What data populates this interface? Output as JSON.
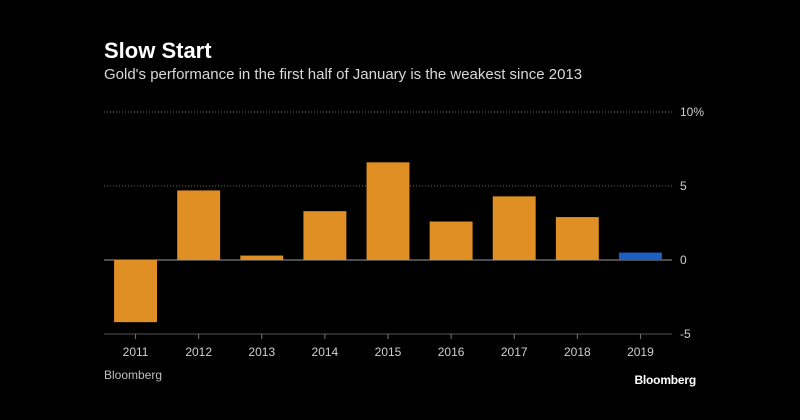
{
  "header": {
    "title": "Slow Start",
    "subtitle": "Gold's performance in the first half of January is the weakest since 2013"
  },
  "chart_data": {
    "type": "bar",
    "categories": [
      "2011",
      "2012",
      "2013",
      "2014",
      "2015",
      "2016",
      "2017",
      "2018",
      "2019"
    ],
    "values": [
      -4.2,
      4.7,
      0.3,
      3.3,
      6.6,
      2.6,
      4.3,
      2.9,
      0.5
    ],
    "ylim": [
      -5,
      10
    ],
    "yticks": [
      -5,
      0,
      5,
      10
    ],
    "ytick_labels": [
      "-5",
      "0",
      "5",
      "10%"
    ],
    "grid": true,
    "colors": {
      "default": "#e08f24",
      "highlight": "#1d5fc5",
      "highlight_category": "2019",
      "gridline": "#6b6b6b",
      "zero_line": "#9a9a9a",
      "tick_label": "#cfcfcf"
    }
  },
  "footer": {
    "source": "Bloomberg",
    "brand": "Bloomberg"
  }
}
